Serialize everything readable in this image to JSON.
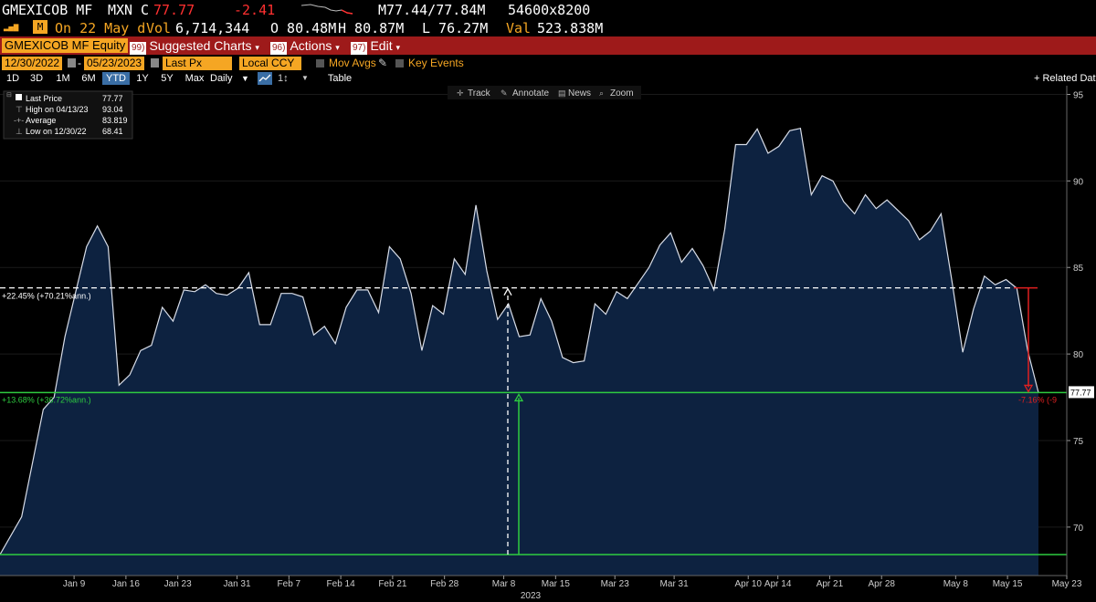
{
  "header": {
    "ticker": "GMEXICOB MF",
    "currency": "MXN",
    "close_label": "C",
    "close": "77.77",
    "change": "-2.41",
    "spread_label": "M77.44/77.84M",
    "size": "54600x8200",
    "date_label": "On 22 May d",
    "vol_label": "Vol",
    "volume": "6,714,344",
    "open": "O 80.48M",
    "high": "H 80.87M",
    "low": "L 76.27M",
    "val_label": "Val",
    "value": "523.838M"
  },
  "toolbar": {
    "security": "GMEXICOB MF Equity",
    "suggested_num": "99)",
    "suggested": "Suggested Charts",
    "actions_num": "96)",
    "actions": "Actions",
    "edit_num": "97)",
    "edit": "Edit"
  },
  "settings": {
    "start_date": "12/30/2022",
    "end_date": "05/23/2023",
    "price_field": "Last Px",
    "currency": "Local CCY",
    "mov_avgs": "Mov Avgs",
    "key_events": "Key Events"
  },
  "ranges": {
    "items": [
      "1D",
      "3D",
      "1M",
      "6M",
      "YTD",
      "1Y",
      "5Y",
      "Max"
    ],
    "selected": "YTD",
    "frequency": "Daily",
    "table": "Table",
    "related": "+ Related Dat"
  },
  "chart_tools": {
    "track": "Track",
    "annotate": "Annotate",
    "news": "News",
    "zoom": "Zoom"
  },
  "legend": {
    "last_price_label": "Last Price",
    "last_price": "77.77",
    "high_label": "High on 04/13/23",
    "high": "93.04",
    "average_label": "Average",
    "average": "83.819",
    "low_label": "Low on 12/30/22",
    "low": "68.41"
  },
  "annotations": {
    "upper_pct": "+22.45% (+70.21%ann.)",
    "lower_pct": "+13.68% (+36.72%ann.)",
    "drop_pct": "-7.16% (-9",
    "last_tag": "77.77"
  },
  "colors": {
    "background": "#000000",
    "area_fill": "#0d2240",
    "line": "#d8dde8",
    "green": "#2ecc40",
    "red": "#e02020",
    "amber": "#f5a623",
    "toolbar_red": "#9e1a1a"
  },
  "chart_data": {
    "type": "area",
    "ylim": [
      67.2,
      95.5
    ],
    "yticks": [
      70,
      75,
      80,
      85,
      90,
      95
    ],
    "x_tick_labels": [
      "Jan 9",
      "Jan 16",
      "Jan 23",
      "Jan 31",
      "Feb 7",
      "Feb 14",
      "Feb 21",
      "Feb 28",
      "Mar 8",
      "Mar 15",
      "Mar 23",
      "Mar 31",
      "Apr 10",
      "Apr 14",
      "Apr 21",
      "Apr 28",
      "May 8",
      "May 15",
      "May 23"
    ],
    "x_year_label": "2023",
    "x_label_days": [
      10,
      17,
      24,
      32,
      39,
      46,
      53,
      60,
      68,
      75,
      83,
      91,
      101,
      105,
      112,
      119,
      129,
      136,
      144
    ],
    "x_range_days": [
      0,
      144
    ],
    "series": [
      {
        "values": [
          [
            0,
            68.41
          ],
          [
            2,
            70.6
          ],
          [
            4,
            76.8
          ],
          [
            5,
            77.5
          ],
          [
            6,
            81.0
          ],
          [
            8,
            86.2
          ],
          [
            9,
            87.4
          ],
          [
            10,
            86.2
          ],
          [
            11,
            78.2
          ],
          [
            12,
            78.8
          ],
          [
            13,
            80.2
          ],
          [
            14,
            80.5
          ],
          [
            15,
            82.7
          ],
          [
            16,
            81.9
          ],
          [
            17,
            83.7
          ],
          [
            18,
            83.6
          ],
          [
            19,
            84.0
          ],
          [
            20,
            83.5
          ],
          [
            21,
            83.4
          ],
          [
            22,
            83.8
          ],
          [
            23,
            84.7
          ],
          [
            24,
            81.7
          ],
          [
            25,
            81.7
          ],
          [
            26,
            83.5
          ],
          [
            27,
            83.5
          ],
          [
            28,
            83.3
          ],
          [
            29,
            81.1
          ],
          [
            30,
            81.6
          ],
          [
            31,
            80.6
          ],
          [
            32,
            82.7
          ],
          [
            33,
            83.7
          ],
          [
            34,
            83.7
          ],
          [
            35,
            82.4
          ],
          [
            36,
            86.2
          ],
          [
            37,
            85.5
          ],
          [
            38,
            83.5
          ],
          [
            39,
            80.2
          ],
          [
            40,
            82.8
          ],
          [
            41,
            82.3
          ],
          [
            42,
            85.5
          ],
          [
            43,
            84.6
          ],
          [
            44,
            88.6
          ],
          [
            45,
            84.8
          ],
          [
            46,
            82.0
          ],
          [
            47,
            82.9
          ],
          [
            48,
            81.0
          ],
          [
            49,
            81.1
          ],
          [
            50,
            83.2
          ],
          [
            51,
            81.9
          ],
          [
            52,
            79.8
          ],
          [
            53,
            79.5
          ],
          [
            54,
            79.6
          ],
          [
            55,
            82.9
          ],
          [
            56,
            82.3
          ],
          [
            57,
            83.6
          ],
          [
            58,
            83.2
          ],
          [
            59,
            84.1
          ],
          [
            60,
            85.0
          ],
          [
            61,
            86.3
          ],
          [
            62,
            87.0
          ],
          [
            63,
            85.3
          ],
          [
            64,
            86.1
          ],
          [
            65,
            85.1
          ],
          [
            66,
            83.7
          ],
          [
            67,
            87.2
          ],
          [
            68,
            92.1
          ],
          [
            69,
            92.1
          ],
          [
            70,
            93.0
          ],
          [
            71,
            91.6
          ],
          [
            72,
            92.0
          ],
          [
            73,
            92.9
          ],
          [
            74,
            93.04
          ],
          [
            75,
            89.2
          ],
          [
            76,
            90.3
          ],
          [
            77,
            90.0
          ],
          [
            78,
            88.8
          ],
          [
            79,
            88.1
          ],
          [
            80,
            89.2
          ],
          [
            81,
            88.4
          ],
          [
            82,
            88.9
          ],
          [
            83,
            88.3
          ],
          [
            84,
            87.7
          ],
          [
            85,
            86.6
          ],
          [
            86,
            87.1
          ],
          [
            87,
            88.1
          ],
          [
            88,
            84.2
          ],
          [
            89,
            80.1
          ],
          [
            90,
            82.6
          ],
          [
            91,
            84.5
          ],
          [
            92,
            84.0
          ],
          [
            93,
            84.3
          ],
          [
            94,
            83.8
          ],
          [
            95,
            80.2
          ],
          [
            96,
            77.77
          ]
        ]
      }
    ],
    "reference_lines": {
      "average": 83.819,
      "low": 68.41,
      "last": 77.77
    }
  }
}
